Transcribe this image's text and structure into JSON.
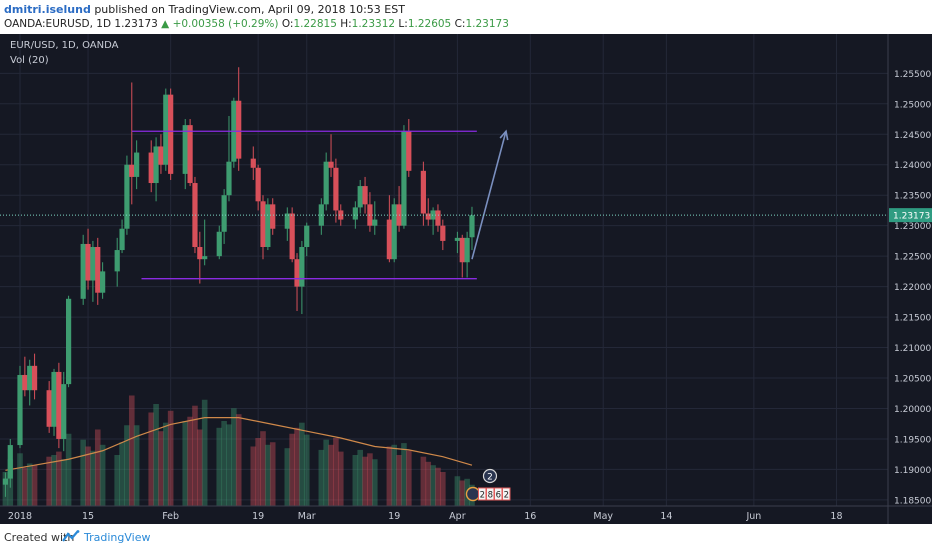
{
  "header": {
    "username": "dmitri.iselund",
    "published_text": "published on TradingView.com, April 09, 2018 10:53 EST",
    "symbol": "OANDA:EURUSD, 1D",
    "last": "1.23173",
    "change": "▲ +0.00358 (+0.29%)",
    "open_label": "O:",
    "open": "1.22815",
    "high_label": "H:",
    "high": "1.23312",
    "low_label": "L:",
    "low": "1.22605",
    "close_label": "C:",
    "close": "1.23173"
  },
  "legend": {
    "pair": "EUR/USD, 1D, OANDA",
    "volume": "Vol (20)"
  },
  "footer": {
    "created_with": "Created with",
    "brand": "TradingView"
  },
  "colors": {
    "background": "#151823",
    "up": "#3e9c70",
    "down": "#d8505a",
    "channel": "#8a2be2",
    "arrow": "#7a8fbf",
    "ma": "#d0894a"
  },
  "chart_data": {
    "type": "candlestick",
    "title": "EUR/USD, 1D, OANDA",
    "ylim": [
      1.184,
      1.2585
    ],
    "y_ticks": [
      "1.25500",
      "1.25000",
      "1.24500",
      "1.24000",
      "1.23500",
      "1.23000",
      "1.22500",
      "1.22000",
      "1.21500",
      "1.21000",
      "1.20500",
      "1.20000",
      "1.19500",
      "1.19000",
      "1.18500"
    ],
    "last_price_label": "1.23173",
    "x_ticks": [
      {
        "label": "2018",
        "day": 0
      },
      {
        "label": "15",
        "day": 14
      },
      {
        "label": "Feb",
        "day": 31
      },
      {
        "label": "19",
        "day": 49
      },
      {
        "label": "Mar",
        "day": 59
      },
      {
        "label": "19",
        "day": 77
      },
      {
        "label": "Apr",
        "day": 90
      },
      {
        "label": "16",
        "day": 105
      },
      {
        "label": "May",
        "day": 120
      },
      {
        "label": "14",
        "day": 133
      },
      {
        "label": "Jun",
        "day": 151
      },
      {
        "label": "18",
        "day": 168
      }
    ],
    "candles": [
      {
        "day": -3,
        "o": 1.1875,
        "h": 1.1895,
        "l": 1.1855,
        "c": 1.1885
      },
      {
        "day": -2,
        "o": 1.1885,
        "h": 1.195,
        "l": 1.187,
        "c": 1.194
      },
      {
        "day": 0,
        "o": 1.194,
        "h": 1.207,
        "l": 1.1935,
        "c": 1.2055
      },
      {
        "day": 1,
        "o": 1.2055,
        "h": 1.2085,
        "l": 1.202,
        "c": 1.203
      },
      {
        "day": 2,
        "o": 1.203,
        "h": 1.208,
        "l": 1.2005,
        "c": 1.207
      },
      {
        "day": 3,
        "o": 1.207,
        "h": 1.209,
        "l": 1.2015,
        "c": 1.203
      },
      {
        "day": 6,
        "o": 1.203,
        "h": 1.2045,
        "l": 1.196,
        "c": 1.197
      },
      {
        "day": 7,
        "o": 1.197,
        "h": 1.2065,
        "l": 1.1955,
        "c": 1.206
      },
      {
        "day": 8,
        "o": 1.206,
        "h": 1.2075,
        "l": 1.1935,
        "c": 1.195
      },
      {
        "day": 9,
        "o": 1.195,
        "h": 1.206,
        "l": 1.193,
        "c": 1.204
      },
      {
        "day": 10,
        "o": 1.204,
        "h": 1.2185,
        "l": 1.2035,
        "c": 1.218
      },
      {
        "day": 13,
        "o": 1.218,
        "h": 1.2285,
        "l": 1.217,
        "c": 1.227
      },
      {
        "day": 14,
        "o": 1.227,
        "h": 1.2295,
        "l": 1.2195,
        "c": 1.221
      },
      {
        "day": 15,
        "o": 1.221,
        "h": 1.2275,
        "l": 1.2175,
        "c": 1.2265
      },
      {
        "day": 16,
        "o": 1.2265,
        "h": 1.228,
        "l": 1.217,
        "c": 1.219
      },
      {
        "day": 17,
        "o": 1.219,
        "h": 1.224,
        "l": 1.218,
        "c": 1.2225
      },
      {
        "day": 20,
        "o": 1.2225,
        "h": 1.228,
        "l": 1.22,
        "c": 1.226
      },
      {
        "day": 21,
        "o": 1.226,
        "h": 1.231,
        "l": 1.2255,
        "c": 1.2295
      },
      {
        "day": 22,
        "o": 1.2295,
        "h": 1.2415,
        "l": 1.2285,
        "c": 1.24
      },
      {
        "day": 23,
        "o": 1.24,
        "h": 1.2535,
        "l": 1.2335,
        "c": 1.238
      },
      {
        "day": 24,
        "o": 1.238,
        "h": 1.244,
        "l": 1.236,
        "c": 1.242
      },
      {
        "day": 27,
        "o": 1.242,
        "h": 1.244,
        "l": 1.2355,
        "c": 1.237
      },
      {
        "day": 28,
        "o": 1.237,
        "h": 1.2445,
        "l": 1.234,
        "c": 1.243
      },
      {
        "day": 29,
        "o": 1.243,
        "h": 1.245,
        "l": 1.2385,
        "c": 1.24
      },
      {
        "day": 30,
        "o": 1.24,
        "h": 1.2525,
        "l": 1.239,
        "c": 1.2515
      },
      {
        "day": 31,
        "o": 1.2515,
        "h": 1.2525,
        "l": 1.2375,
        "c": 1.2385
      },
      {
        "day": 34,
        "o": 1.2385,
        "h": 1.2475,
        "l": 1.236,
        "c": 1.2465
      },
      {
        "day": 35,
        "o": 1.2465,
        "h": 1.2475,
        "l": 1.2365,
        "c": 1.237
      },
      {
        "day": 36,
        "o": 1.237,
        "h": 1.238,
        "l": 1.2255,
        "c": 1.2265
      },
      {
        "day": 37,
        "o": 1.2265,
        "h": 1.229,
        "l": 1.2205,
        "c": 1.2245
      },
      {
        "day": 38,
        "o": 1.2245,
        "h": 1.231,
        "l": 1.2235,
        "c": 1.225
      },
      {
        "day": 41,
        "o": 1.225,
        "h": 1.23,
        "l": 1.2245,
        "c": 1.229
      },
      {
        "day": 42,
        "o": 1.229,
        "h": 1.236,
        "l": 1.227,
        "c": 1.235
      },
      {
        "day": 43,
        "o": 1.235,
        "h": 1.248,
        "l": 1.234,
        "c": 1.2405
      },
      {
        "day": 44,
        "o": 1.2405,
        "h": 1.251,
        "l": 1.2395,
        "c": 1.2505
      },
      {
        "day": 45,
        "o": 1.2505,
        "h": 1.256,
        "l": 1.239,
        "c": 1.241
      },
      {
        "day": 48,
        "o": 1.241,
        "h": 1.243,
        "l": 1.2375,
        "c": 1.2395
      },
      {
        "day": 49,
        "o": 1.2395,
        "h": 1.24,
        "l": 1.2325,
        "c": 1.234
      },
      {
        "day": 50,
        "o": 1.234,
        "h": 1.235,
        "l": 1.2245,
        "c": 1.2265
      },
      {
        "day": 51,
        "o": 1.2265,
        "h": 1.2345,
        "l": 1.226,
        "c": 1.2335
      },
      {
        "day": 52,
        "o": 1.2335,
        "h": 1.2345,
        "l": 1.2285,
        "c": 1.2295
      },
      {
        "day": 55,
        "o": 1.2295,
        "h": 1.233,
        "l": 1.2275,
        "c": 1.232
      },
      {
        "day": 56,
        "o": 1.232,
        "h": 1.233,
        "l": 1.224,
        "c": 1.2245
      },
      {
        "day": 57,
        "o": 1.2245,
        "h": 1.2255,
        "l": 1.216,
        "c": 1.22
      },
      {
        "day": 58,
        "o": 1.22,
        "h": 1.2275,
        "l": 1.2155,
        "c": 1.2265
      },
      {
        "day": 59,
        "o": 1.2265,
        "h": 1.2305,
        "l": 1.225,
        "c": 1.23
      },
      {
        "day": 62,
        "o": 1.23,
        "h": 1.2345,
        "l": 1.2285,
        "c": 1.2335
      },
      {
        "day": 63,
        "o": 1.2335,
        "h": 1.242,
        "l": 1.2325,
        "c": 1.2405
      },
      {
        "day": 64,
        "o": 1.2405,
        "h": 1.245,
        "l": 1.238,
        "c": 1.2395
      },
      {
        "day": 65,
        "o": 1.2395,
        "h": 1.241,
        "l": 1.2305,
        "c": 1.2325
      },
      {
        "day": 66,
        "o": 1.2325,
        "h": 1.2335,
        "l": 1.23,
        "c": 1.231
      },
      {
        "day": 69,
        "o": 1.231,
        "h": 1.234,
        "l": 1.2295,
        "c": 1.233
      },
      {
        "day": 70,
        "o": 1.233,
        "h": 1.2375,
        "l": 1.232,
        "c": 1.2365
      },
      {
        "day": 71,
        "o": 1.2365,
        "h": 1.238,
        "l": 1.232,
        "c": 1.2335
      },
      {
        "day": 72,
        "o": 1.2335,
        "h": 1.2355,
        "l": 1.229,
        "c": 1.23
      },
      {
        "day": 73,
        "o": 1.23,
        "h": 1.234,
        "l": 1.2285,
        "c": 1.231
      },
      {
        "day": 76,
        "o": 1.231,
        "h": 1.235,
        "l": 1.224,
        "c": 1.2245
      },
      {
        "day": 77,
        "o": 1.2245,
        "h": 1.2345,
        "l": 1.224,
        "c": 1.2335
      },
      {
        "day": 78,
        "o": 1.2335,
        "h": 1.2365,
        "l": 1.229,
        "c": 1.23
      },
      {
        "day": 79,
        "o": 1.23,
        "h": 1.2465,
        "l": 1.2295,
        "c": 1.2455
      },
      {
        "day": 80,
        "o": 1.2455,
        "h": 1.2475,
        "l": 1.238,
        "c": 1.239
      },
      {
        "day": 83,
        "o": 1.239,
        "h": 1.2405,
        "l": 1.23,
        "c": 1.232
      },
      {
        "day": 84,
        "o": 1.232,
        "h": 1.2345,
        "l": 1.23,
        "c": 1.231
      },
      {
        "day": 85,
        "o": 1.231,
        "h": 1.233,
        "l": 1.2285,
        "c": 1.2325
      },
      {
        "day": 86,
        "o": 1.2325,
        "h": 1.2335,
        "l": 1.229,
        "c": 1.23
      },
      {
        "day": 87,
        "o": 1.23,
        "h": 1.231,
        "l": 1.226,
        "c": 1.2275
      },
      {
        "day": 90,
        "o": 1.2275,
        "h": 1.229,
        "l": 1.2255,
        "c": 1.228
      },
      {
        "day": 91,
        "o": 1.228,
        "h": 1.2285,
        "l": 1.2215,
        "c": 1.224
      },
      {
        "day": 92,
        "o": 1.224,
        "h": 1.229,
        "l": 1.2215,
        "c": 1.228
      },
      {
        "day": 93,
        "o": 1.2281,
        "h": 1.2331,
        "l": 1.226,
        "c": 1.2317
      }
    ],
    "volume": [
      {
        "day": -3,
        "v": 40,
        "up": true
      },
      {
        "day": -2,
        "v": 55,
        "up": true
      },
      {
        "day": 0,
        "v": 62,
        "up": true
      },
      {
        "day": 1,
        "v": 45,
        "up": false
      },
      {
        "day": 2,
        "v": 50,
        "up": true
      },
      {
        "day": 3,
        "v": 48,
        "up": false
      },
      {
        "day": 6,
        "v": 58,
        "up": false
      },
      {
        "day": 7,
        "v": 60,
        "up": true
      },
      {
        "day": 8,
        "v": 64,
        "up": false
      },
      {
        "day": 9,
        "v": 55,
        "up": true
      },
      {
        "day": 10,
        "v": 85,
        "up": true
      },
      {
        "day": 13,
        "v": 78,
        "up": true
      },
      {
        "day": 14,
        "v": 70,
        "up": false
      },
      {
        "day": 15,
        "v": 65,
        "up": true
      },
      {
        "day": 16,
        "v": 90,
        "up": false
      },
      {
        "day": 17,
        "v": 72,
        "up": true
      },
      {
        "day": 20,
        "v": 60,
        "up": true
      },
      {
        "day": 21,
        "v": 75,
        "up": true
      },
      {
        "day": 22,
        "v": 95,
        "up": true
      },
      {
        "day": 23,
        "v": 130,
        "up": false
      },
      {
        "day": 24,
        "v": 95,
        "up": true
      },
      {
        "day": 27,
        "v": 110,
        "up": false
      },
      {
        "day": 28,
        "v": 120,
        "up": true
      },
      {
        "day": 29,
        "v": 88,
        "up": false
      },
      {
        "day": 30,
        "v": 98,
        "up": true
      },
      {
        "day": 31,
        "v": 112,
        "up": false
      },
      {
        "day": 34,
        "v": 100,
        "up": true
      },
      {
        "day": 35,
        "v": 105,
        "up": false
      },
      {
        "day": 36,
        "v": 118,
        "up": false
      },
      {
        "day": 37,
        "v": 90,
        "up": false
      },
      {
        "day": 38,
        "v": 125,
        "up": true
      },
      {
        "day": 41,
        "v": 92,
        "up": true
      },
      {
        "day": 42,
        "v": 100,
        "up": true
      },
      {
        "day": 43,
        "v": 96,
        "up": true
      },
      {
        "day": 44,
        "v": 115,
        "up": true
      },
      {
        "day": 45,
        "v": 108,
        "up": false
      },
      {
        "day": 48,
        "v": 70,
        "up": false
      },
      {
        "day": 49,
        "v": 80,
        "up": false
      },
      {
        "day": 50,
        "v": 88,
        "up": false
      },
      {
        "day": 51,
        "v": 72,
        "up": true
      },
      {
        "day": 52,
        "v": 75,
        "up": false
      },
      {
        "day": 55,
        "v": 68,
        "up": true
      },
      {
        "day": 56,
        "v": 85,
        "up": false
      },
      {
        "day": 57,
        "v": 92,
        "up": false
      },
      {
        "day": 58,
        "v": 98,
        "up": true
      },
      {
        "day": 59,
        "v": 84,
        "up": true
      },
      {
        "day": 62,
        "v": 66,
        "up": true
      },
      {
        "day": 63,
        "v": 78,
        "up": true
      },
      {
        "day": 64,
        "v": 72,
        "up": false
      },
      {
        "day": 65,
        "v": 80,
        "up": false
      },
      {
        "day": 66,
        "v": 64,
        "up": false
      },
      {
        "day": 69,
        "v": 60,
        "up": true
      },
      {
        "day": 70,
        "v": 66,
        "up": true
      },
      {
        "day": 71,
        "v": 58,
        "up": false
      },
      {
        "day": 72,
        "v": 62,
        "up": false
      },
      {
        "day": 73,
        "v": 55,
        "up": true
      },
      {
        "day": 76,
        "v": 70,
        "up": false
      },
      {
        "day": 77,
        "v": 72,
        "up": true
      },
      {
        "day": 78,
        "v": 60,
        "up": false
      },
      {
        "day": 79,
        "v": 74,
        "up": true
      },
      {
        "day": 80,
        "v": 65,
        "up": false
      },
      {
        "day": 83,
        "v": 58,
        "up": false
      },
      {
        "day": 84,
        "v": 52,
        "up": false
      },
      {
        "day": 85,
        "v": 48,
        "up": true
      },
      {
        "day": 86,
        "v": 45,
        "up": false
      },
      {
        "day": 87,
        "v": 40,
        "up": false
      },
      {
        "day": 90,
        "v": 35,
        "up": true
      },
      {
        "day": 91,
        "v": 30,
        "up": false
      },
      {
        "day": 92,
        "v": 32,
        "up": true
      },
      {
        "day": 93,
        "v": 25,
        "up": true
      }
    ],
    "volume_ma": [
      {
        "day": -3,
        "v": 42
      },
      {
        "day": 3,
        "v": 48
      },
      {
        "day": 10,
        "v": 55
      },
      {
        "day": 17,
        "v": 65
      },
      {
        "day": 24,
        "v": 82
      },
      {
        "day": 31,
        "v": 96
      },
      {
        "day": 38,
        "v": 104
      },
      {
        "day": 45,
        "v": 104
      },
      {
        "day": 52,
        "v": 96
      },
      {
        "day": 59,
        "v": 88
      },
      {
        "day": 66,
        "v": 80
      },
      {
        "day": 73,
        "v": 70
      },
      {
        "day": 80,
        "v": 66
      },
      {
        "day": 87,
        "v": 58
      },
      {
        "day": 93,
        "v": 48
      }
    ],
    "channel": {
      "upper": 1.2455,
      "lower": 1.2213,
      "start_day": 23,
      "end_day": 94
    },
    "projection": {
      "from_day": 93,
      "from_price": 1.2245,
      "to_day": 100,
      "to_price": 1.2455
    },
    "badges": [
      "2",
      "2",
      "8",
      "6",
      "2"
    ]
  }
}
